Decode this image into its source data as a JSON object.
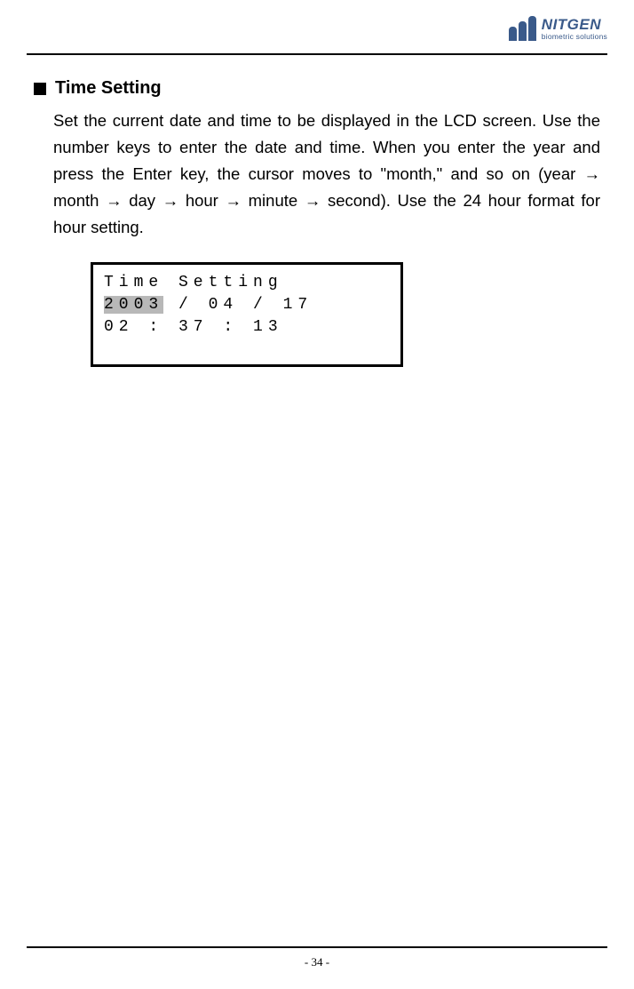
{
  "header": {
    "logo_name": "NITGEN",
    "logo_tagline": "biometric solutions"
  },
  "section": {
    "title": "Time Setting",
    "body": "Set the current date and time to be displayed in the LCD screen. Use the number keys to enter the date and time. When you enter the year and press the Enter key, the cursor moves to  \"month,\" and so on (year → month → day → hour → minute → second). Use the 24 hour format for hour setting."
  },
  "lcd": {
    "line1": "Time Setting",
    "line2_highlight": "2003",
    "line2_rest": " / 04 / 17",
    "line3": "02 : 37 : 13"
  },
  "footer": {
    "page_number": "- 34 -"
  }
}
